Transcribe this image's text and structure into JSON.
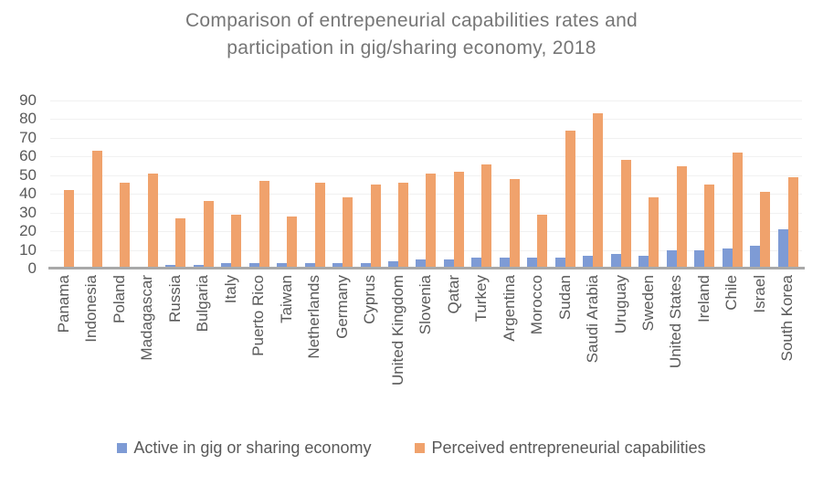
{
  "title": {
    "line1": "Comparison of entrepeneurial capabilities rates and",
    "line2": "participation in gig/sharing economy, 2018"
  },
  "chart_data": {
    "type": "bar",
    "title": "Comparison of entrepeneurial capabilities rates and participation in gig/sharing economy, 2018",
    "categories": [
      "Panama",
      "Indonesia",
      "Poland",
      "Madagascar",
      "Russia",
      "Bulgaria",
      "Italy",
      "Puerto Rico",
      "Taiwan",
      "Netherlands",
      "Germany",
      "Cyprus",
      "United Kingdom",
      "Slovenia",
      "Qatar",
      "Turkey",
      "Argentina",
      "Morocco",
      "Sudan",
      "Saudi Arabia",
      "Uruguay",
      "Sweden",
      "United States",
      "Ireland",
      "Chile",
      "Israel",
      "South Korea"
    ],
    "series": [
      {
        "name": "Active in gig or sharing economy",
        "color": "#7E9BD5",
        "values": [
          0,
          0,
          1,
          1,
          2,
          2,
          3,
          3,
          3,
          3,
          3,
          3,
          4,
          5,
          5,
          6,
          6,
          6,
          6,
          7,
          8,
          7,
          10,
          10,
          11,
          12,
          21
        ]
      },
      {
        "name": "Perceived entrepreneurial capabilities",
        "color": "#F0A26C",
        "values": [
          42,
          63,
          46,
          51,
          27,
          36,
          29,
          47,
          28,
          46,
          38,
          45,
          46,
          51,
          52,
          56,
          48,
          29,
          74,
          83,
          58,
          38,
          55,
          45,
          62,
          41,
          49
        ]
      }
    ],
    "ylim": [
      0,
      90
    ],
    "yticks": [
      0,
      10,
      20,
      30,
      40,
      50,
      60,
      70,
      80,
      90
    ],
    "grid": true,
    "legend_position": "bottom",
    "xlabel": "",
    "ylabel": ""
  },
  "colors": {
    "series_blue": "#7E9BD5",
    "series_orange": "#F0A26C",
    "title_text": "#767676",
    "axis_text": "#595959",
    "gridline": "#F1F1F1",
    "axis_line": "#A9A9A9",
    "background": "#FFFFFF"
  }
}
